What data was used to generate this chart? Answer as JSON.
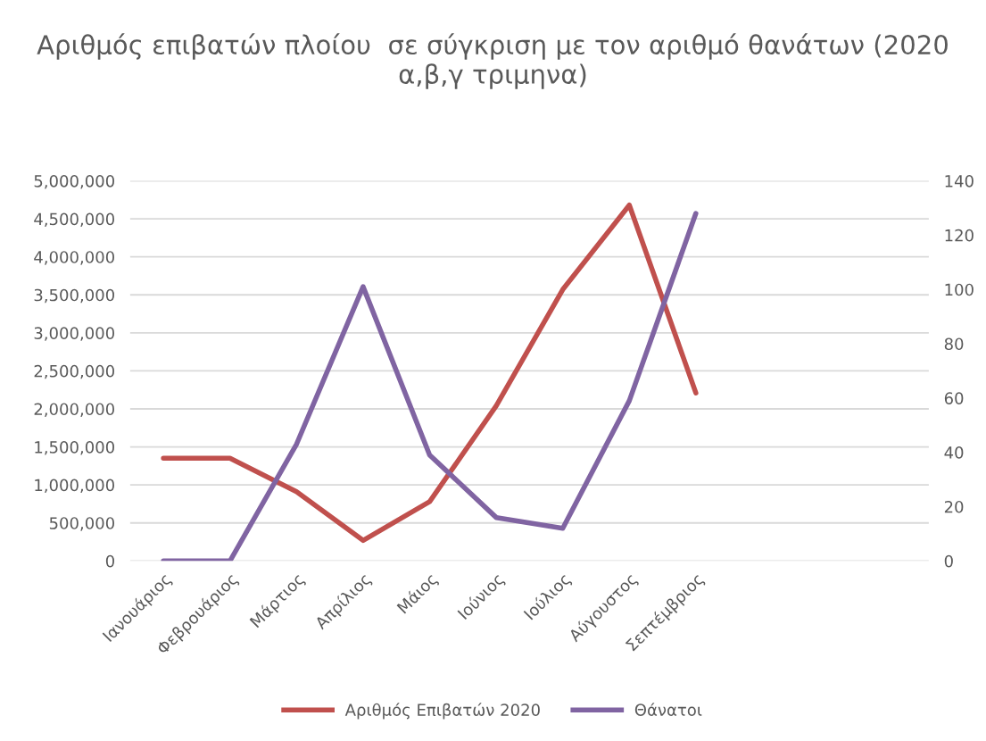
{
  "chart_data": {
    "type": "line",
    "title": "Αριθμός επιβατών πλοίου  σε σύγκριση με τον αριθμό θανάτων (2020 α,β,γ τριμηνα)",
    "categories": [
      "Ιανουάριος",
      "Φεβρουάριος",
      "Μάρτιος",
      "Απρίλιος",
      "Μάιος",
      "Ιούνιος",
      "Ιούλιος",
      "Αύγουστος",
      "Σεπτέμβριος",
      null,
      null,
      null
    ],
    "series": [
      {
        "name": "Αριθμός Επιβατών 2020",
        "color": "#c0504d",
        "values": [
          1350000,
          1350000,
          910000,
          270000,
          780000,
          2040000,
          3570000,
          4680000,
          2210000,
          null,
          null,
          null
        ]
      },
      {
        "name": "Θάνατοι",
        "color": "#8064a2",
        "axis": "y2",
        "values": [
          0,
          0,
          43,
          101,
          39,
          16,
          12,
          59,
          128,
          null,
          null,
          null
        ]
      }
    ],
    "ylim": [
      0,
      5000000
    ],
    "yticks": [
      {
        "value": 0,
        "label": "0"
      },
      {
        "value": 500000,
        "label": "500,000"
      },
      {
        "value": 1000000,
        "label": "1,000,000"
      },
      {
        "value": 1500000,
        "label": "1,500,000"
      },
      {
        "value": 2000000,
        "label": "2,000,000"
      },
      {
        "value": 2500000,
        "label": "2,500,000"
      },
      {
        "value": 3000000,
        "label": "3,000,000"
      },
      {
        "value": 3500000,
        "label": "3,500,000"
      },
      {
        "value": 4000000,
        "label": "4,000,000"
      },
      {
        "value": 4500000,
        "label": "4,500,000"
      },
      {
        "value": 5000000,
        "label": "5,000,000"
      }
    ],
    "y2lim": [
      0,
      140
    ],
    "y2ticks": [
      0,
      20,
      40,
      60,
      80,
      100,
      120,
      140
    ],
    "grid": "y",
    "legend": "bottom",
    "marker": "none",
    "line_style": "solid"
  }
}
